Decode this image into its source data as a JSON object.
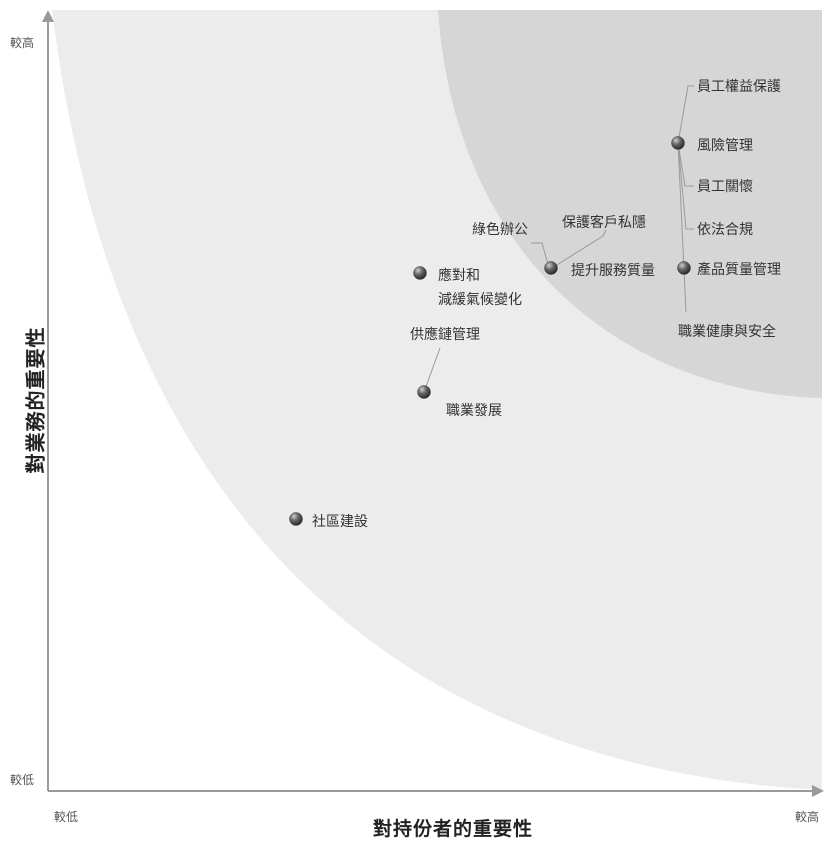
{
  "chart_data": {
    "type": "scatter",
    "title": "",
    "xlabel": "對持份者的重要性",
    "ylabel": "對業務的重要性",
    "xlim": [
      0,
      100
    ],
    "ylim": [
      0,
      100
    ],
    "x_tick_labels": {
      "low": "較低",
      "high": "較高"
    },
    "y_tick_labels": {
      "low": "較低",
      "high": "較高"
    },
    "grid": false,
    "legend": "none",
    "colors": {
      "background": "#ffffff",
      "outer_region": "#ececec",
      "inner_region": "#d6d6d6",
      "axis": "#9a9a9a",
      "point": "#555555",
      "leader": "#9a9a9a",
      "label": "#333333"
    },
    "points": [
      {
        "name": "社區建設",
        "x": 31.9,
        "y": 31.9
      },
      {
        "name": "職業發展",
        "x": 48.8,
        "y": 52.1
      },
      {
        "name": "應對和減緩氣候變化",
        "x": 48.2,
        "y": 68.8
      },
      {
        "name": "提升服務質量",
        "x": 65.4,
        "y": 70.0
      },
      {
        "name": "風險管理",
        "x": 81.2,
        "y": 85.0
      },
      {
        "name": "產品質量管理",
        "x": 82.0,
        "y": 70.2
      }
    ],
    "labels": [
      {
        "text": "員工權益保護"
      },
      {
        "text": "風險管理"
      },
      {
        "text": "員工關懷"
      },
      {
        "text": "依法合規"
      },
      {
        "text": "產品質量管理"
      },
      {
        "text": "職業健康與安全"
      },
      {
        "text": "保護客戶私隱"
      },
      {
        "text": "綠色辦公"
      },
      {
        "text": "提升服務質量"
      },
      {
        "text": "應對和"
      },
      {
        "text": "減緩氣候變化"
      },
      {
        "text": "供應鏈管理"
      },
      {
        "text": "職業發展"
      },
      {
        "text": "社區建設"
      }
    ]
  }
}
